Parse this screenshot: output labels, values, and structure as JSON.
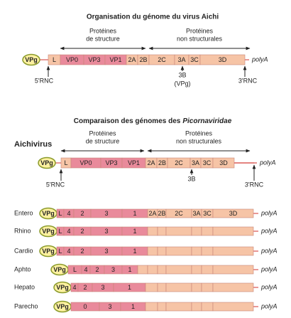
{
  "figure1": {
    "title": "Organisation du génome du virus Aichi",
    "structural_label": [
      "Protéines",
      "de structure"
    ],
    "nonstructural_label": [
      "Protéines",
      "non structurales"
    ],
    "vpg": "VPg",
    "segments": [
      "L",
      "VP0",
      "VP3",
      "VP1",
      "2A",
      "2B",
      "2C",
      "3A",
      "3C",
      "3D"
    ],
    "five_prime": "5'RNC",
    "three_prime": "3'RNC",
    "polyA": "polyA",
    "marker": [
      "3B",
      "(VPg)"
    ]
  },
  "figure2": {
    "title": "Comparaison des génomes des",
    "title_italic": "Picornaviridae",
    "aichivirus": {
      "name": "Aichivirus",
      "structural_label": [
        "Protéines",
        "de structure"
      ],
      "nonstructural_label": [
        "Protéines",
        "non structurales"
      ],
      "vpg": "VPg",
      "segments": [
        "L",
        "VP0",
        "VP3",
        "VP1",
        "2A",
        "2B",
        "2C",
        "3A",
        "3C",
        "3D"
      ],
      "five_prime": "5'RNC",
      "three_prime": "3'RNC",
      "polyA": "polyA",
      "marker": "3B"
    },
    "rows": [
      {
        "name": "Entero",
        "vpg": "VPg",
        "segments": [
          "L",
          "4",
          "2",
          "3",
          "1",
          "2A",
          "2B",
          "2C",
          "3A",
          "3C",
          "3D"
        ],
        "polyA": "polyA"
      },
      {
        "name": "Rhino",
        "vpg": "VPg",
        "segments": [
          "L",
          "4",
          "2",
          "3",
          "1"
        ],
        "polyA": "polyA"
      },
      {
        "name": "Cardio",
        "vpg": "VPg",
        "segments": [
          "L",
          "4",
          "2",
          "3",
          "1"
        ],
        "polyA": "polyA"
      },
      {
        "name": "Aphto",
        "vpg": "VPg",
        "segments": [
          "L",
          "4",
          "2",
          "3",
          "1"
        ],
        "polyA": "polyA"
      },
      {
        "name": "Hepato",
        "vpg": "VPg",
        "segments": [
          "4",
          "2",
          "3",
          "1"
        ],
        "polyA": "polyA"
      },
      {
        "name": "Parecho",
        "vpg": "VPg",
        "segments": [
          "0",
          "3",
          "1"
        ],
        "polyA": "polyA"
      }
    ]
  }
}
